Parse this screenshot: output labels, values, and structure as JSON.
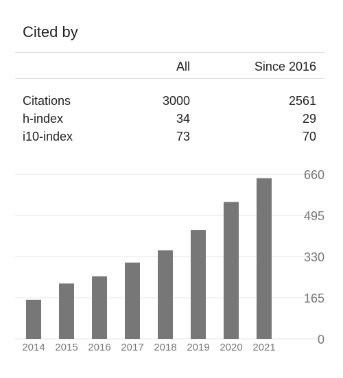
{
  "panel": {
    "title": "Cited by",
    "columns": {
      "all": "All",
      "since": "Since 2016"
    },
    "rows": [
      {
        "label": "Citations",
        "all": "3000",
        "since": "2561"
      },
      {
        "label": "h-index",
        "all": "34",
        "since": "29"
      },
      {
        "label": "i10-index",
        "all": "73",
        "since": "70"
      }
    ]
  },
  "colors": {
    "bar": "#777777",
    "grid": "#e6e6e6",
    "axis_text": "#777777",
    "text": "#222222"
  },
  "chart_data": {
    "type": "bar",
    "categories": [
      "2014",
      "2015",
      "2016",
      "2017",
      "2018",
      "2019",
      "2020",
      "2021"
    ],
    "values": [
      157,
      222,
      251,
      306,
      355,
      437,
      549,
      644
    ],
    "ylim": [
      0,
      660
    ],
    "yticks": [
      "0",
      "165",
      "330",
      "495",
      "660"
    ],
    "grid": true,
    "ytick_position": "right"
  }
}
